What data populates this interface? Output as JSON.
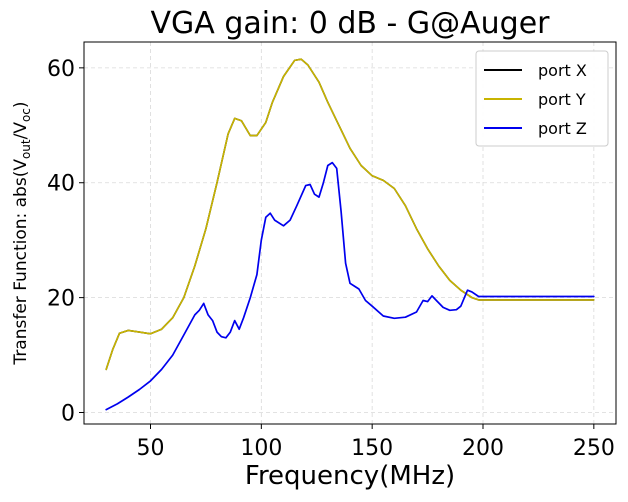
{
  "chart_data": {
    "type": "line",
    "title": "VGA gain: 0 dB - G@Auger",
    "xlabel": "Frequency(MHz)",
    "ylabel": {
      "prefix": "Transfer Function: abs(V",
      "sub1": "out",
      "mid": "/V",
      "sub2": "oc",
      "suffix": ")"
    },
    "xlim": [
      20,
      260
    ],
    "ylim": [
      -2,
      64.5
    ],
    "xticks": [
      50,
      100,
      150,
      200,
      250
    ],
    "xtick_labels": [
      "50",
      "100",
      "150",
      "200",
      "250"
    ],
    "yticks": [
      0,
      20,
      40,
      60
    ],
    "ytick_labels": [
      "0",
      "20",
      "40",
      "60"
    ],
    "grid": true,
    "legend_position": "top-right",
    "series": [
      {
        "name": "port X",
        "color": "#000000",
        "points": [
          [
            30,
            7.5
          ],
          [
            33,
            11
          ],
          [
            36,
            13.8
          ],
          [
            40,
            14.3
          ],
          [
            45,
            14
          ],
          [
            50,
            13.7
          ],
          [
            55,
            14.5
          ],
          [
            60,
            16.5
          ],
          [
            65,
            20
          ],
          [
            70,
            25.5
          ],
          [
            75,
            32
          ],
          [
            80,
            40
          ],
          [
            85,
            48.5
          ],
          [
            88,
            51.2
          ],
          [
            91,
            50.8
          ],
          [
            95,
            48.2
          ],
          [
            98,
            48.2
          ],
          [
            102,
            50.5
          ],
          [
            105,
            54
          ],
          [
            110,
            58.5
          ],
          [
            115,
            61.3
          ],
          [
            118,
            61.5
          ],
          [
            121,
            60.5
          ],
          [
            126,
            57.5
          ],
          [
            130,
            54
          ],
          [
            135,
            50
          ],
          [
            140,
            46
          ],
          [
            145,
            43
          ],
          [
            150,
            41.2
          ],
          [
            155,
            40.4
          ],
          [
            160,
            39
          ],
          [
            165,
            36
          ],
          [
            170,
            32
          ],
          [
            175,
            28.5
          ],
          [
            180,
            25.5
          ],
          [
            185,
            23
          ],
          [
            190,
            21.3
          ],
          [
            195,
            20
          ],
          [
            198,
            19.6
          ],
          [
            200,
            19.6
          ],
          [
            250,
            19.6
          ]
        ]
      },
      {
        "name": "port Y",
        "color": "#c8b400",
        "points": [
          [
            30,
            7.5
          ],
          [
            33,
            11
          ],
          [
            36,
            13.8
          ],
          [
            40,
            14.3
          ],
          [
            45,
            14
          ],
          [
            50,
            13.7
          ],
          [
            55,
            14.5
          ],
          [
            60,
            16.5
          ],
          [
            65,
            20
          ],
          [
            70,
            25.5
          ],
          [
            75,
            32
          ],
          [
            80,
            40
          ],
          [
            85,
            48.5
          ],
          [
            88,
            51.2
          ],
          [
            91,
            50.8
          ],
          [
            95,
            48.2
          ],
          [
            98,
            48.2
          ],
          [
            102,
            50.5
          ],
          [
            105,
            54
          ],
          [
            110,
            58.5
          ],
          [
            115,
            61.3
          ],
          [
            118,
            61.5
          ],
          [
            121,
            60.5
          ],
          [
            126,
            57.5
          ],
          [
            130,
            54
          ],
          [
            135,
            50
          ],
          [
            140,
            46
          ],
          [
            145,
            43
          ],
          [
            150,
            41.2
          ],
          [
            155,
            40.4
          ],
          [
            160,
            39
          ],
          [
            165,
            36
          ],
          [
            170,
            32
          ],
          [
            175,
            28.5
          ],
          [
            180,
            25.5
          ],
          [
            185,
            23
          ],
          [
            190,
            21.3
          ],
          [
            195,
            20
          ],
          [
            198,
            19.6
          ],
          [
            200,
            19.6
          ],
          [
            250,
            19.6
          ]
        ]
      },
      {
        "name": "port Z",
        "color": "#0000ee",
        "points": [
          [
            30,
            0.5
          ],
          [
            35,
            1.5
          ],
          [
            40,
            2.7
          ],
          [
            45,
            4
          ],
          [
            50,
            5.5
          ],
          [
            55,
            7.5
          ],
          [
            60,
            10
          ],
          [
            65,
            13.5
          ],
          [
            70,
            17
          ],
          [
            72,
            17.8
          ],
          [
            74,
            19
          ],
          [
            76,
            17
          ],
          [
            78,
            16
          ],
          [
            80,
            14
          ],
          [
            82,
            13.2
          ],
          [
            84,
            13
          ],
          [
            86,
            14
          ],
          [
            88,
            16
          ],
          [
            90,
            14.5
          ],
          [
            92,
            16.5
          ],
          [
            95,
            20
          ],
          [
            98,
            24
          ],
          [
            100,
            30
          ],
          [
            102,
            34
          ],
          [
            104,
            34.7
          ],
          [
            106,
            33.5
          ],
          [
            110,
            32.5
          ],
          [
            113,
            33.5
          ],
          [
            116,
            36
          ],
          [
            120,
            39.5
          ],
          [
            122,
            39.7
          ],
          [
            124,
            38
          ],
          [
            126,
            37.5
          ],
          [
            128,
            40
          ],
          [
            130,
            43
          ],
          [
            132,
            43.5
          ],
          [
            134,
            42.5
          ],
          [
            136,
            35
          ],
          [
            138,
            26
          ],
          [
            140,
            22.5
          ],
          [
            142,
            22
          ],
          [
            144,
            21.5
          ],
          [
            147,
            19.5
          ],
          [
            150,
            18.5
          ],
          [
            155,
            16.8
          ],
          [
            160,
            16.4
          ],
          [
            165,
            16.6
          ],
          [
            170,
            17.5
          ],
          [
            173,
            19.5
          ],
          [
            175,
            19.3
          ],
          [
            177,
            20.3
          ],
          [
            179,
            19.5
          ],
          [
            182,
            18.3
          ],
          [
            185,
            17.8
          ],
          [
            188,
            17.9
          ],
          [
            190,
            18.5
          ],
          [
            193,
            21.3
          ],
          [
            195,
            21
          ],
          [
            198,
            20.2
          ],
          [
            200,
            20.2
          ],
          [
            250,
            20.2
          ]
        ]
      }
    ]
  }
}
